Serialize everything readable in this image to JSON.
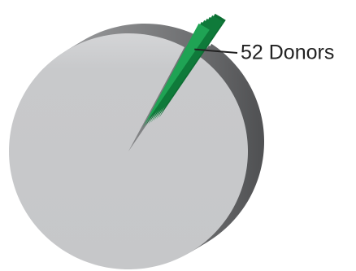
{
  "chart_data": {
    "type": "pie",
    "categories": [
      null,
      null
    ],
    "values": [
      3050,
      52
    ],
    "value_labels": [
      null,
      "52 Donors"
    ],
    "colors": [
      "#c8c9cb",
      "#1fa354"
    ],
    "exploded": [
      false,
      true
    ],
    "three_d": true
  }
}
